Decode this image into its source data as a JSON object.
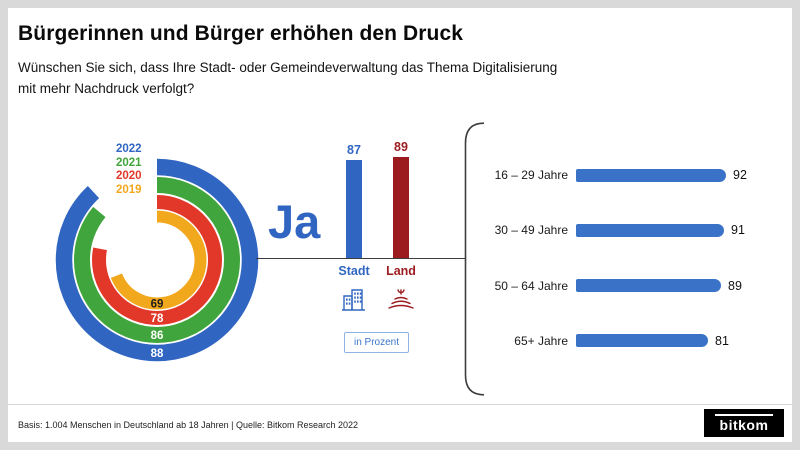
{
  "header": {
    "title": "Bürgerinnen und Bürger erhöhen den Druck",
    "subtitle_line1": "Wünschen Sie sich, dass Ihre Stadt- oder Gemeindeverwaltung das Thema Digitalisierung",
    "subtitle_line2": "mit mehr Nachdruck verfolgt?"
  },
  "chart_data": [
    {
      "type": "donut",
      "unit": "Prozent",
      "series": [
        {
          "year": "2022",
          "value": 88,
          "color": "#3066c2",
          "label_color": "#ffffff"
        },
        {
          "year": "2021",
          "value": 86,
          "color": "#3fa53c",
          "label_color": "#ffffff"
        },
        {
          "year": "2020",
          "value": 78,
          "color": "#e2382a",
          "label_color": "#ffffff"
        },
        {
          "year": "2019",
          "value": 69,
          "color": "#f2a81d",
          "label_color": "#1d1d1b"
        }
      ]
    },
    {
      "type": "bar",
      "answer_label": "Ja",
      "categories": [
        "Stadt",
        "Land"
      ],
      "values": [
        87,
        89
      ],
      "colors": [
        "#3066c2",
        "#9b1b1e"
      ],
      "unit_label": "in Prozent"
    },
    {
      "type": "bar-horizontal",
      "categories": [
        "16 – 29 Jahre",
        "30 – 49 Jahre",
        "50 – 64 Jahre",
        "65+ Jahre"
      ],
      "values": [
        92,
        91,
        89,
        81
      ],
      "color": "#3a72c8",
      "xlim": [
        0,
        100
      ]
    }
  ],
  "footer": {
    "source": "Basis: 1.004 Menschen in Deutschland ab 18 Jahren | Quelle: Bitkom Research 2022",
    "logo_text": "bitkom"
  }
}
